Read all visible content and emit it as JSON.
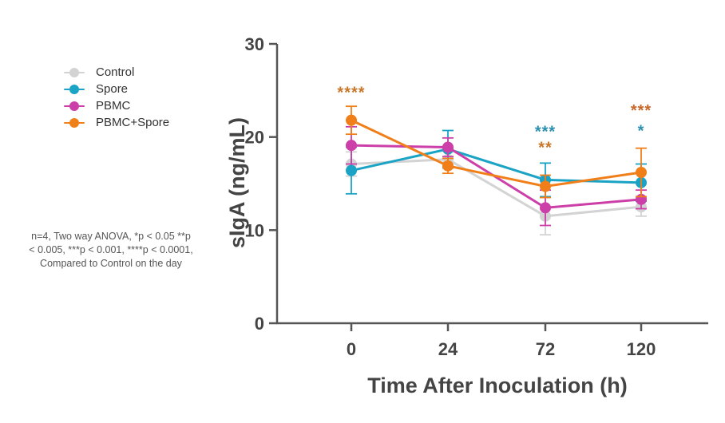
{
  "chart_data": {
    "type": "line",
    "xlabel": "Time After Inoculation (h)",
    "ylabel": "sIgA (ng/mL)",
    "categories": [
      "0",
      "24",
      "72",
      "120"
    ],
    "y_ticks": [
      0,
      10,
      20,
      30
    ],
    "ylim": [
      0,
      30
    ],
    "legend_position": "left",
    "series": [
      {
        "name": "Control",
        "color": "#d3d3d3",
        "values": [
          17.1,
          17.6,
          11.5,
          12.5
        ],
        "errors": [
          1.3,
          1.0,
          2.0,
          1.0
        ]
      },
      {
        "name": "Spore",
        "color": "#1ba3c6",
        "values": [
          16.4,
          18.7,
          15.4,
          15.1
        ],
        "errors": [
          2.5,
          2.0,
          1.8,
          2.0
        ]
      },
      {
        "name": "PBMC",
        "color": "#cc3fa8",
        "values": [
          19.1,
          18.9,
          12.4,
          13.3
        ],
        "errors": [
          2.0,
          1.0,
          1.9,
          1.0
        ]
      },
      {
        "name": "PBMC+Spore",
        "color": "#f07f1a",
        "values": [
          21.8,
          16.9,
          14.7,
          16.2
        ],
        "errors": [
          1.5,
          0.8,
          1.2,
          2.6
        ]
      }
    ],
    "annotations": [
      {
        "text": "****",
        "category": "0",
        "color": "#c8782a",
        "y": 24.2
      },
      {
        "text": "***",
        "category": "72",
        "color": "#2c8fb0",
        "y": 20.0
      },
      {
        "text": "**",
        "category": "72",
        "color": "#c8782a",
        "y": 18.3
      },
      {
        "text": "***",
        "category": "120",
        "color": "#c8672a",
        "y": 22.3
      },
      {
        "text": "*",
        "category": "120",
        "color": "#2c8fb0",
        "y": 20.1
      }
    ]
  },
  "note": {
    "lines": [
      "n=4, Two way ANOVA, *p < 0.05  **p",
      "< 0.005, ***p < 0.001, ****p < 0.0001,",
      "Compared to Control on the day"
    ]
  }
}
